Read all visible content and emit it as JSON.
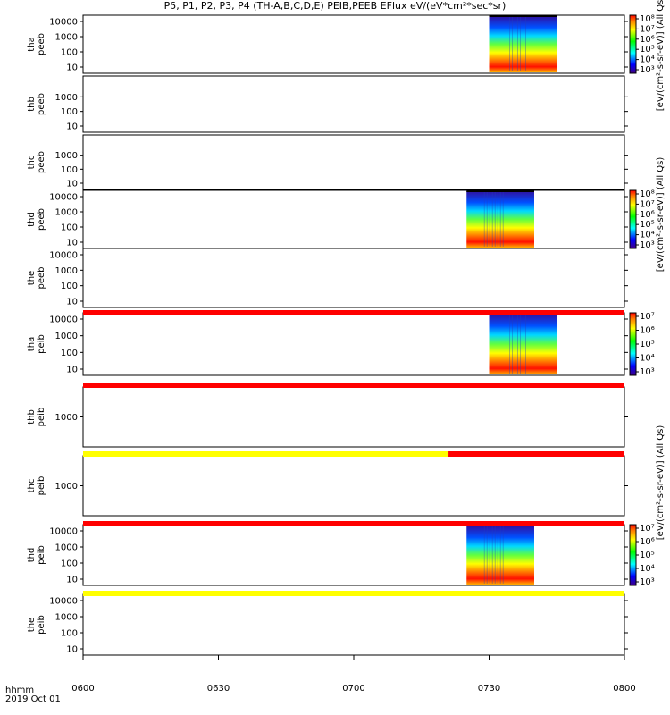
{
  "title": "P5, P1, P2, P3, P4 (TH-A,B,C,D,E) PEIB,PEEB EFlux eV/(eV*cm²*sec*sr)",
  "time_axis": {
    "label_line1": "hhmm",
    "label_line2": "2019 Oct 01",
    "ticks": [
      "0600",
      "0630",
      "0700",
      "0730",
      "0800"
    ]
  },
  "unit_labels": {
    "top": "[eV/(cm²-s-sr-eV)] (All Qs)",
    "mid": "[eV/(cm²-s-sr-eV)] (All Qs)",
    "ions": "[eV/(cm²-s-sr-eV)] (All Qs)"
  },
  "chart_data": {
    "type": "heatmap",
    "x_range": [
      "06:00",
      "08:00"
    ],
    "panels": [
      {
        "probe": "tha",
        "species": "peeb",
        "ylabel_1": "tha",
        "ylabel_2": "peeb",
        "yticks": [
          "10",
          "100",
          "1000",
          "10000"
        ],
        "data_start": "07:30",
        "data_end": "07:45",
        "colorbar_ticks": [
          "10³",
          "10⁴",
          "10⁵",
          "10⁶",
          "10⁷",
          "10⁸"
        ]
      },
      {
        "probe": "thb",
        "species": "peeb",
        "ylabel_1": "thb",
        "ylabel_2": "peeb",
        "yticks": [
          "10",
          "100",
          "1000"
        ],
        "data_start": null,
        "data_end": null
      },
      {
        "probe": "thc",
        "species": "peeb",
        "ylabel_1": "thc",
        "ylabel_2": "peeb",
        "yticks": [
          "10",
          "100",
          "1000"
        ],
        "data_start": null,
        "data_end": null
      },
      {
        "probe": "thd",
        "species": "peeb",
        "ylabel_1": "thd",
        "ylabel_2": "peeb",
        "yticks": [
          "10",
          "100",
          "1000",
          "10000"
        ],
        "data_start": "07:25",
        "data_end": "07:40",
        "colorbar_ticks": [
          "10³",
          "10⁴",
          "10⁵",
          "10⁶",
          "10⁷",
          "10⁸"
        ]
      },
      {
        "probe": "the",
        "species": "peeb",
        "ylabel_1": "the",
        "ylabel_2": "peeb",
        "yticks": [
          "10",
          "100",
          "1000",
          "10000"
        ],
        "data_start": null,
        "data_end": null
      },
      {
        "probe": "tha",
        "species": "peib",
        "ylabel_1": "tha",
        "ylabel_2": "peib",
        "yticks": [
          "10",
          "100",
          "1000",
          "10000"
        ],
        "data_start": "07:30",
        "data_end": "07:45",
        "colorbar_ticks": [
          "10³",
          "10⁴",
          "10⁵",
          "10⁶",
          "10⁷"
        ]
      },
      {
        "probe": "thb",
        "species": "peib",
        "ylabel_1": "thb",
        "ylabel_2": "peib",
        "yticks": [
          "1000"
        ],
        "data_start": null,
        "data_end": null
      },
      {
        "probe": "thc",
        "species": "peib",
        "ylabel_1": "thc",
        "ylabel_2": "peib",
        "yticks": [
          "1000"
        ],
        "data_start": null,
        "data_end": null
      },
      {
        "probe": "thd",
        "species": "peib",
        "ylabel_1": "thd",
        "ylabel_2": "peib",
        "yticks": [
          "10",
          "100",
          "1000",
          "10000"
        ],
        "data_start": "07:25",
        "data_end": "07:40",
        "colorbar_ticks": [
          "10³",
          "10⁴",
          "10⁵",
          "10⁶",
          "10⁷"
        ]
      },
      {
        "probe": "the",
        "species": "peib",
        "ylabel_1": "the",
        "ylabel_2": "peib",
        "yticks": [
          "10",
          "100",
          "1000",
          "10000"
        ],
        "data_start": null,
        "data_end": null
      }
    ],
    "mode_bars": [
      {
        "segments": [
          {
            "from": "06:00",
            "to": "08:00",
            "color": "#ff0000"
          }
        ]
      },
      {
        "segments": [
          {
            "from": "06:00",
            "to": "08:00",
            "color": "#ff0000"
          }
        ]
      },
      {
        "segments": [
          {
            "from": "06:00",
            "to": "07:21",
            "color": "#ffff00"
          },
          {
            "from": "07:21",
            "to": "08:00",
            "color": "#ff0000"
          }
        ]
      },
      {
        "segments": [
          {
            "from": "06:00",
            "to": "08:00",
            "color": "#ff0000"
          }
        ]
      },
      {
        "segments": [
          {
            "from": "06:00",
            "to": "08:00",
            "color": "#ffff00"
          }
        ]
      }
    ]
  }
}
